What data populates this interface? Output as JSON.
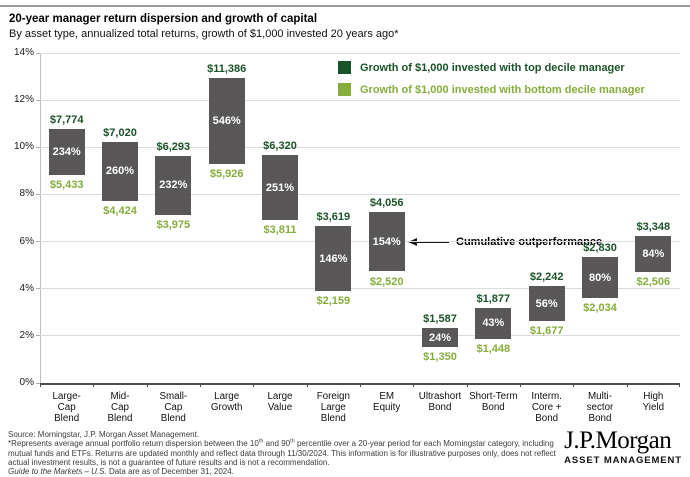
{
  "header": {
    "title": "20-year manager return dispersion and growth of capital",
    "subtitle": "By asset type, annualized total returns, growth of $1,000 invested 20 years ago*"
  },
  "legend": {
    "top": "Growth of $1,000 invested with top decile manager",
    "bottom": "Growth of $1,000 invested with bottom decile manager"
  },
  "annotation": "Cumulative outperformance",
  "colors": {
    "dark_green": "#1a5329",
    "light_green": "#86ad3c",
    "bar_gray": "#595757",
    "grid_gray": "#dcdcdc",
    "axis_gray": "#4d4d4d"
  },
  "chart_data": {
    "type": "bar",
    "subtype": "floating-range-bars",
    "title": "20-year manager return dispersion and growth of capital",
    "xlabel": "",
    "ylabel": "",
    "ylim": [
      0,
      14
    ],
    "ytick_step": 2,
    "ytick_suffix": "%",
    "grid": true,
    "legend_position": "top-right",
    "categories": [
      "Large-Cap Blend",
      "Mid-Cap Blend",
      "Small-Cap Blend",
      "Large Growth",
      "Large Value",
      "Foreign Large Blend",
      "EM Equity",
      "Ultrashort Bond",
      "Short-Term Bond",
      "Interm. Core + Bond",
      "Multi-sector Bond",
      "High Yield"
    ],
    "categories_lines": [
      [
        "Large-",
        "Cap",
        "Blend"
      ],
      [
        "Mid-",
        "Cap",
        "Blend"
      ],
      [
        "Small-",
        "Cap",
        "Blend"
      ],
      [
        "Large",
        "Growth"
      ],
      [
        "Large",
        "Value"
      ],
      [
        "Foreign",
        "Large",
        "Blend"
      ],
      [
        "EM",
        "Equity"
      ],
      [
        "Ultrashort",
        "Bond"
      ],
      [
        "Short-Term",
        "Bond"
      ],
      [
        "Interm.",
        "Core +",
        "Bond"
      ],
      [
        "Multi-",
        "sector",
        "Bond"
      ],
      [
        "High",
        "Yield"
      ]
    ],
    "series": [
      {
        "name": "Growth of $1,000 invested with top decile manager",
        "value_labels": [
          "$7,774",
          "$7,020",
          "$6,293",
          "$11,386",
          "$6,320",
          "$3,619",
          "$4,056",
          "$1,587",
          "$1,877",
          "$2,242",
          "$2,830",
          "$3,348"
        ],
        "annualized_return_pct": [
          10.79,
          10.23,
          9.63,
          12.93,
          9.66,
          6.64,
          7.25,
          2.34,
          3.2,
          4.12,
          5.34,
          6.23
        ]
      },
      {
        "name": "Growth of $1,000 invested with bottom decile manager",
        "value_labels": [
          "$5,433",
          "$4,424",
          "$3,975",
          "$5,926",
          "$3,811",
          "$2,159",
          "$2,520",
          "$1,350",
          "$1,448",
          "$1,677",
          "$2,034",
          "$2,506"
        ],
        "annualized_return_pct": [
          8.83,
          7.72,
          7.14,
          9.31,
          6.92,
          3.92,
          4.73,
          1.51,
          1.87,
          2.62,
          3.61,
          4.7
        ]
      }
    ],
    "cumulative_outperformance_labels": [
      "234%",
      "260%",
      "232%",
      "546%",
      "251%",
      "146%",
      "154%",
      "24%",
      "43%",
      "56%",
      "80%",
      "84%"
    ],
    "annotation": {
      "text": "Cumulative outperformance",
      "points_to_category": "EM Equity"
    }
  },
  "footer": {
    "source": "Source: Morningstar, J.P. Morgan Asset Management.",
    "fn_part1": "*Represents average annual portfolio return dispersion between the 10",
    "fn_sup1": "th",
    "fn_part2": " and 90",
    "fn_sup2": "th",
    "fn_part3": " percentile over a 20-year period for each Morningstar category, including mutual funds and ETFs. Returns are updated monthly and reflect data through 11/30/2024. This information is for illustrative purposes only, does not reflect actual investment results, is not a guarantee of future results and is not a recommendation.",
    "gtm_italic": "Guide to the Markets – U.S.",
    "gtm_rest": "  Data are as of December 31, 2024."
  },
  "logo": {
    "name": "J.P.Morgan",
    "sub": "ASSET MANAGEMENT"
  }
}
